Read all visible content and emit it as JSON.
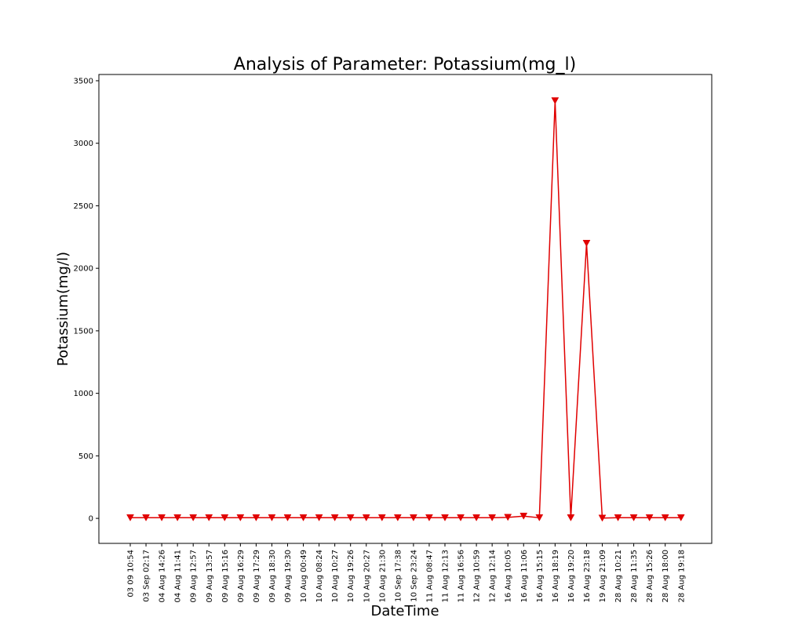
{
  "chart_data": {
    "type": "line",
    "title": "Analysis of Parameter: Potassium(mg_l)",
    "xlabel": "DateTime",
    "ylabel": "Potassium(mg/l)",
    "ylim": [
      -200,
      3550
    ],
    "yticks": [
      0,
      500,
      1000,
      1500,
      2000,
      2500,
      3000,
      3500
    ],
    "grid": false,
    "series_color": "#e00000",
    "marker": "triangle-down",
    "categories": [
      "03 09 10:54",
      "03 Sep 02:17",
      "04 Aug 14:26",
      "04 Aug 11:41",
      "09 Aug 12:57",
      "09 Aug 13:57",
      "09 Aug 15:16",
      "09 Aug 16:29",
      "09 Aug 17:29",
      "09 Aug 18:30",
      "09 Aug 19:30",
      "10 Aug 00:49",
      "10 Aug 08:24",
      "10 Aug 10:27",
      "10 Aug 19:26",
      "10 Aug 20:27",
      "10 Aug 21:30",
      "10 Sep 17:38",
      "10 Sep 23:24",
      "11 Aug 08:47",
      "11 Aug 12:13",
      "11 Aug 16:56",
      "12 Aug 10:59",
      "12 Aug 12:14",
      "16 Aug 10:05",
      "16 Aug 11:06",
      "16 Aug 15:15",
      "16 Aug 18:19",
      "16 Aug 19:20",
      "16 Aug 23:18",
      "19 Aug 21:09",
      "28 Aug 10:21",
      "28 Aug 11:35",
      "28 Aug 15:26",
      "28 Aug 18:00",
      "28 Aug 19:18"
    ],
    "values": [
      5,
      5,
      5,
      5,
      5,
      5,
      5,
      5,
      5,
      5,
      5,
      5,
      5,
      5,
      5,
      5,
      5,
      5,
      5,
      5,
      5,
      5,
      5,
      5,
      8,
      18,
      5,
      3340,
      5,
      2200,
      2,
      5,
      5,
      5,
      5,
      5
    ]
  }
}
